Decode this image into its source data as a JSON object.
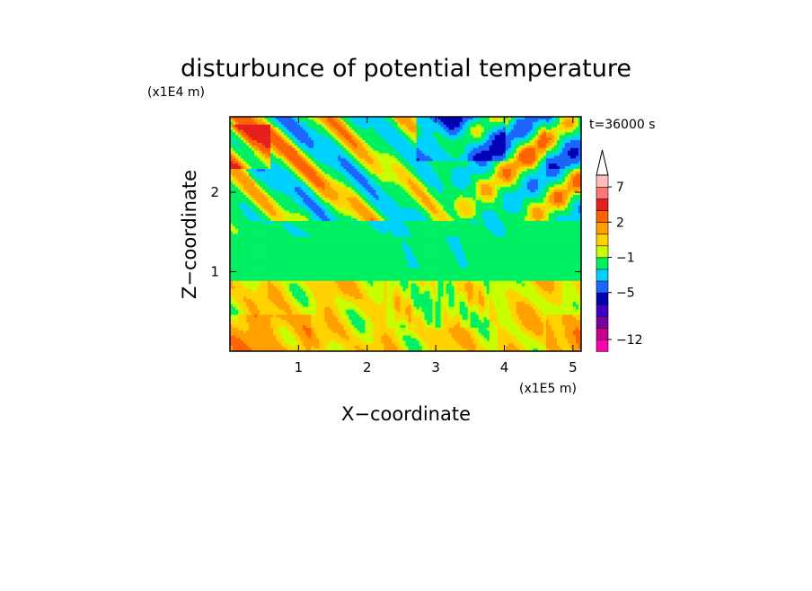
{
  "chart_data": {
    "type": "heatmap",
    "title": "disturbunce of potential temperature",
    "time_label": "t=36000 s",
    "xlabel": "X−coordinate",
    "ylabel": "Z−coordinate",
    "x_unit": "(x1E5 m)",
    "y_unit": "(x1E4 m)",
    "xlim": [
      0,
      5.12
    ],
    "ylim": [
      0,
      2.95
    ],
    "x_ticks": [
      {
        "value": 1,
        "label": "1"
      },
      {
        "value": 2,
        "label": "2"
      },
      {
        "value": 3,
        "label": "3"
      },
      {
        "value": 4,
        "label": "4"
      },
      {
        "value": 5,
        "label": "5"
      }
    ],
    "y_ticks": [
      {
        "value": 1,
        "label": "1"
      },
      {
        "value": 2,
        "label": "2"
      }
    ],
    "colorbar": {
      "levels_bottom_to_top": [
        {
          "color": "#ff00b4"
        },
        {
          "color": "#c8008c"
        },
        {
          "color": "#7800a0"
        },
        {
          "color": "#3c00c8"
        },
        {
          "color": "#0000b4"
        },
        {
          "color": "#1e64ff"
        },
        {
          "color": "#00d2ff"
        },
        {
          "color": "#00f064"
        },
        {
          "color": "#c8ff00"
        },
        {
          "color": "#ffd200"
        },
        {
          "color": "#ffa000"
        },
        {
          "color": "#ff6400"
        },
        {
          "color": "#e61e1e"
        },
        {
          "color": "#ff7878"
        },
        {
          "color": "#ffbebe"
        }
      ],
      "tick_labels": [
        {
          "label": "−12",
          "after_level": 0
        },
        {
          "label": "−5",
          "after_level": 4
        },
        {
          "label": "−1",
          "after_level": 7
        },
        {
          "label": "2",
          "after_level": 10
        },
        {
          "label": "7",
          "after_level": 13
        }
      ],
      "extend": "max"
    },
    "grid": false,
    "field_description_levels": {
      "lower_layer_0_to_0.9": "yellow/light-orange",
      "middle_layer_0.9_to_1.7": "green",
      "upper_layer_1.7_to_2.95": "alternating red and blue wave bands"
    }
  }
}
